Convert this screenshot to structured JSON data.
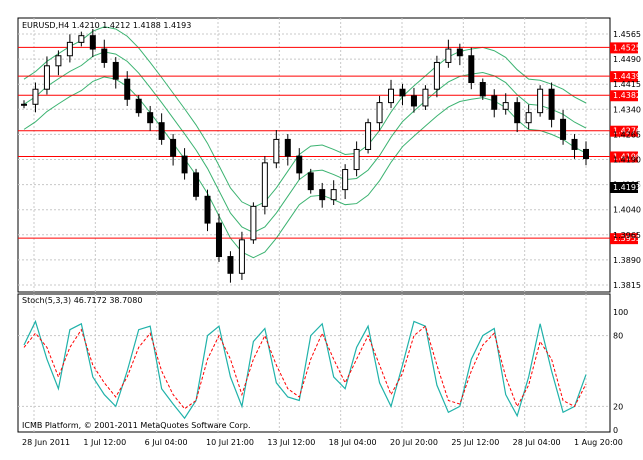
{
  "main_panel": {
    "header": "EURUSD,H4  1.4210 1.4212 1.4188 1.4193",
    "price_ticks": [
      "1.4565",
      "1.4490",
      "1.4415",
      "1.4340",
      "1.4265",
      "1.4190",
      "1.4115",
      "1.4040",
      "1.3965",
      "1.3890",
      "1.3815"
    ],
    "ylim": [
      1.3815,
      1.4565
    ],
    "horizontal_levels": [
      {
        "label": "1.4525",
        "value": 1.4525
      },
      {
        "label": "1.4439",
        "value": 1.4439
      },
      {
        "label": "1.4382",
        "value": 1.4382
      },
      {
        "label": "1.4276",
        "value": 1.4276
      },
      {
        "label": "1.4199",
        "value": 1.4199
      },
      {
        "label": "1.3955",
        "value": 1.3955
      }
    ],
    "current_price_label": "1.4193",
    "current_price": 1.4193,
    "colors": {
      "background": "#ffffff",
      "grid": "#c0c0c0",
      "level_line": "#ff0000",
      "level_box": "#ff0000",
      "bollinger": "#3cb371",
      "candle": "#000000"
    }
  },
  "stoch_panel": {
    "header": "Stoch(5,3,3) 46.7172 38.7080",
    "ticks": [
      "100",
      "80",
      "20",
      "0"
    ],
    "ylim": [
      0,
      100
    ],
    "main_color": "#20b2aa",
    "signal_color": "#ff0000"
  },
  "footer_text": "ICMB Platform, © 2001-2011 MetaQuotes Software Corp.",
  "time_axis": [
    "28 Jun 2011",
    "1 Jul 12:00",
    "6 Jul 04:00",
    "10 Jul 21:00",
    "13 Jul 12:00",
    "18 Jul 04:00",
    "20 Jul 20:00",
    "25 Jul 12:00",
    "28 Jul 04:00",
    "1 Aug 20:00"
  ],
  "chart_data": {
    "type": "candlestick",
    "close_path": [
      1.4355,
      1.44,
      1.447,
      1.45,
      1.454,
      1.456,
      1.452,
      1.448,
      1.443,
      1.437,
      1.433,
      1.43,
      1.425,
      1.42,
      1.415,
      1.408,
      1.4,
      1.39,
      1.385,
      1.395,
      1.405,
      1.418,
      1.425,
      1.42,
      1.415,
      1.41,
      1.407,
      1.41,
      1.416,
      1.422,
      1.43,
      1.436,
      1.44,
      1.438,
      1.435,
      1.44,
      1.448,
      1.452,
      1.45,
      1.442,
      1.438,
      1.434,
      1.436,
      1.43,
      1.433,
      1.44,
      1.431,
      1.425,
      1.422,
      1.4193
    ],
    "stoch_main": [
      72,
      92,
      60,
      35,
      85,
      90,
      45,
      30,
      20,
      50,
      85,
      88,
      35,
      22,
      10,
      25,
      80,
      88,
      45,
      20,
      75,
      86,
      40,
      28,
      25,
      80,
      90,
      45,
      35,
      70,
      88,
      40,
      20,
      55,
      92,
      88,
      38,
      15,
      20,
      60,
      80,
      86,
      30,
      12,
      45,
      90,
      50,
      15,
      20,
      47
    ],
    "stoch_signal": [
      70,
      82,
      70,
      45,
      70,
      85,
      55,
      40,
      28,
      45,
      70,
      82,
      50,
      30,
      18,
      25,
      60,
      80,
      60,
      30,
      60,
      80,
      55,
      35,
      28,
      60,
      82,
      60,
      40,
      60,
      80,
      55,
      30,
      48,
      80,
      88,
      55,
      25,
      22,
      50,
      72,
      82,
      45,
      20,
      38,
      75,
      60,
      25,
      20,
      39
    ]
  }
}
